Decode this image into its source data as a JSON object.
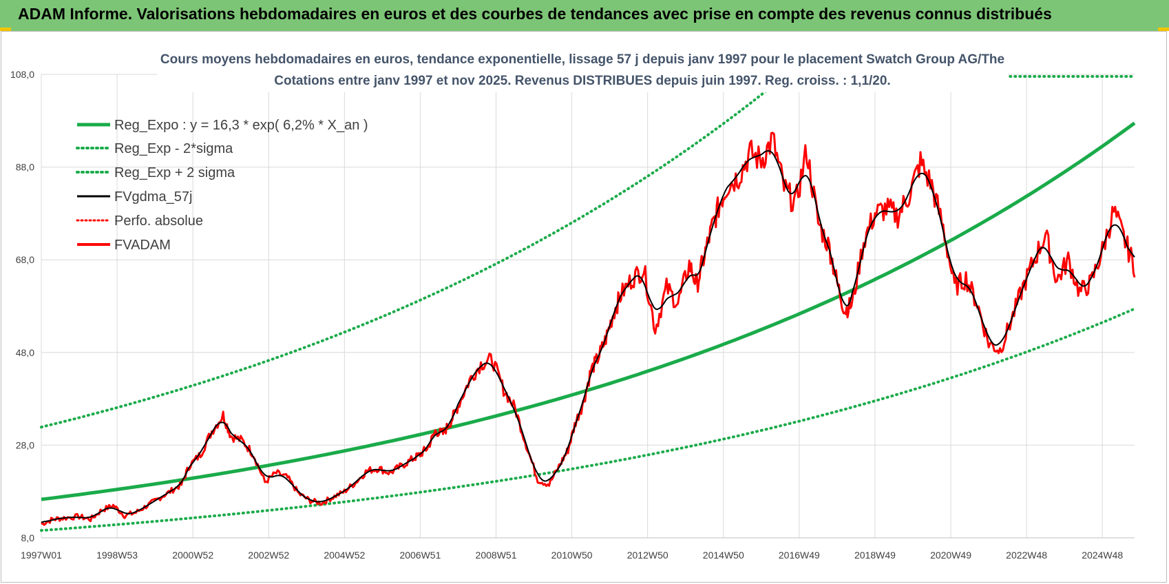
{
  "header": {
    "title": "ADAM Informe. Valorisations hebdomadaires en euros et des courbes de tendances avec prise en compte des revenus connus distribués"
  },
  "colors": {
    "banner": "#7cc576",
    "trend": "#1aab4a",
    "fvgdma": "#000000",
    "fvadam": "#ff0000",
    "perfo": "#ff0000",
    "subtitle": "#44546a"
  },
  "chart_data": {
    "type": "line",
    "title_lines": [
      "Cours moyens hebdomadaires en euros, tendance exponentielle, lissage 57 j depuis janv 1997  pour le placement Swatch Group AG/The",
      "Cotations entre janv 1997 et nov 2025. Revenus DISTRIBUES depuis juin 1997. Reg.  croiss. : 1,1/20."
    ],
    "xlabel": "",
    "ylabel": "",
    "ylim": [
      8,
      108
    ],
    "y_ticks": [
      "8,0",
      "28,0",
      "48,0",
      "68,0",
      "88,0",
      "108,0"
    ],
    "y_tick_values": [
      8,
      28,
      48,
      68,
      88,
      108
    ],
    "xlim": [
      1997.0,
      2025.85
    ],
    "x_ticks": [
      "1997W01",
      "1998W53",
      "2000W52",
      "2002W52",
      "2004W52",
      "2006W51",
      "2008W51",
      "2010W50",
      "2012W50",
      "2014W50",
      "2016W49",
      "2018W49",
      "2020W49",
      "2022W48",
      "2024W48"
    ],
    "x_tick_values": [
      1997.0,
      1999.0,
      2001.0,
      2003.0,
      2005.0,
      2007.0,
      2009.0,
      2011.0,
      2013.0,
      2015.0,
      2017.0,
      2019.0,
      2021.0,
      2023.0,
      2025.0
    ],
    "legend": [
      {
        "label": "Reg_Expo : y = 16,3 * exp( 6,2% *  X_an )",
        "style": "solid-thick",
        "color": "#1aab4a"
      },
      {
        "label": "Reg_Exp - 2*sigma",
        "style": "dotted",
        "color": "#1aab4a"
      },
      {
        "label": "Reg_Exp + 2 sigma",
        "style": "dotted",
        "color": "#1aab4a"
      },
      {
        "label": "FVgdma_57j",
        "style": "solid",
        "color": "#000000"
      },
      {
        "label": "Perfo. absolue",
        "style": "dotted",
        "color": "#ff0000"
      },
      {
        "label": "FVADAM",
        "style": "solid",
        "color": "#ff0000"
      }
    ],
    "series": [
      {
        "name": "Reg_Expo",
        "style": "solid",
        "color": "#1aab4a",
        "x": [
          1997.0,
          2025.85
        ],
        "formula": "16.3*exp(0.062*(x-1997))"
      },
      {
        "name": "Reg_Exp - 2*sigma",
        "style": "dotted",
        "color": "#1aab4a",
        "x": [
          1997.0,
          2025.85
        ],
        "formula": "9.6*exp(0.062*(x-1997))"
      },
      {
        "name": "Reg_Exp + 2 sigma",
        "style": "dotted",
        "color": "#1aab4a",
        "x": [
          1997.0,
          2025.85
        ],
        "formula": "31.9*exp(0.062*(x-1997))",
        "clip_top": 108
      },
      {
        "name": "FVADAM",
        "style": "solid",
        "color": "#ff0000",
        "x": [
          1997.0,
          1997.3,
          1997.6,
          1998.0,
          1998.3,
          1998.6,
          1998.9,
          1999.2,
          1999.5,
          1999.8,
          2000.1,
          2000.4,
          2000.7,
          2000.9,
          2001.2,
          2001.5,
          2001.8,
          2002.0,
          2002.3,
          2002.6,
          2002.9,
          2003.2,
          2003.5,
          2003.8,
          2004.1,
          2004.4,
          2004.7,
          2005.0,
          2005.3,
          2005.6,
          2005.9,
          2006.2,
          2006.5,
          2006.8,
          2007.0,
          2007.2,
          2007.4,
          2007.6,
          2007.8,
          2008.0,
          2008.3,
          2008.6,
          2008.9,
          2009.2,
          2009.5,
          2009.8,
          2010.1,
          2010.4,
          2010.7,
          2010.9,
          2011.1,
          2011.3,
          2011.5,
          2011.7,
          2011.9,
          2012.1,
          2012.3,
          2012.6,
          2012.9,
          2013.2,
          2013.5,
          2013.8,
          2014.1,
          2014.3,
          2014.5,
          2014.7,
          2014.9,
          2015.1,
          2015.4,
          2015.7,
          2016.0,
          2016.3,
          2016.6,
          2016.9,
          2017.2,
          2017.5,
          2017.8,
          2018.0,
          2018.2,
          2018.4,
          2018.7,
          2019.0,
          2019.3,
          2019.6,
          2019.9,
          2020.2,
          2020.5,
          2020.8,
          2021.1,
          2021.4,
          2021.7,
          2022.0,
          2022.3,
          2022.6,
          2022.9,
          2023.2,
          2023.5,
          2023.8,
          2024.1,
          2024.4,
          2024.7,
          2025.0,
          2025.3,
          2025.6,
          2025.85
        ],
        "values": [
          11.0,
          12.0,
          12.3,
          12.6,
          12.0,
          14.0,
          15.0,
          12.8,
          13.5,
          15.0,
          16.5,
          18.0,
          19.5,
          23.5,
          26.0,
          31.0,
          34.5,
          30.0,
          29.0,
          26.0,
          20.0,
          22.0,
          21.0,
          17.5,
          16.0,
          15.5,
          16.8,
          18.0,
          20.0,
          22.5,
          23.0,
          22.0,
          23.5,
          25.0,
          26.0,
          27.5,
          31.0,
          30.5,
          33.0,
          36.5,
          42.0,
          45.5,
          46.5,
          40.0,
          36.0,
          28.0,
          20.5,
          19.5,
          24.0,
          27.0,
          33.0,
          37.0,
          44.0,
          47.0,
          51.0,
          56.5,
          60.5,
          64.0,
          66.0,
          53.0,
          62.0,
          58.5,
          67.0,
          62.5,
          69.0,
          75.0,
          80.0,
          84.0,
          86.0,
          91.0,
          89.5,
          94.0,
          83.5,
          80.0,
          91.5,
          76.0,
          70.5,
          63.0,
          57.0,
          58.5,
          72.0,
          78.0,
          79.0,
          77.5,
          82.0,
          89.0,
          84.0,
          75.0,
          62.0,
          64.0,
          58.5,
          50.0,
          48.5,
          55.0,
          62.0,
          68.0,
          73.5,
          63.5,
          68.0,
          61.0,
          63.0,
          70.0,
          78.5,
          72.0,
          66.5
        ],
        "note": "values estimated; data portion before 2025.85 also drawn"
      },
      {
        "name": "FVgdma_57j",
        "style": "solid",
        "color": "#000000",
        "note": "smoothed FVADAM"
      }
    ]
  }
}
